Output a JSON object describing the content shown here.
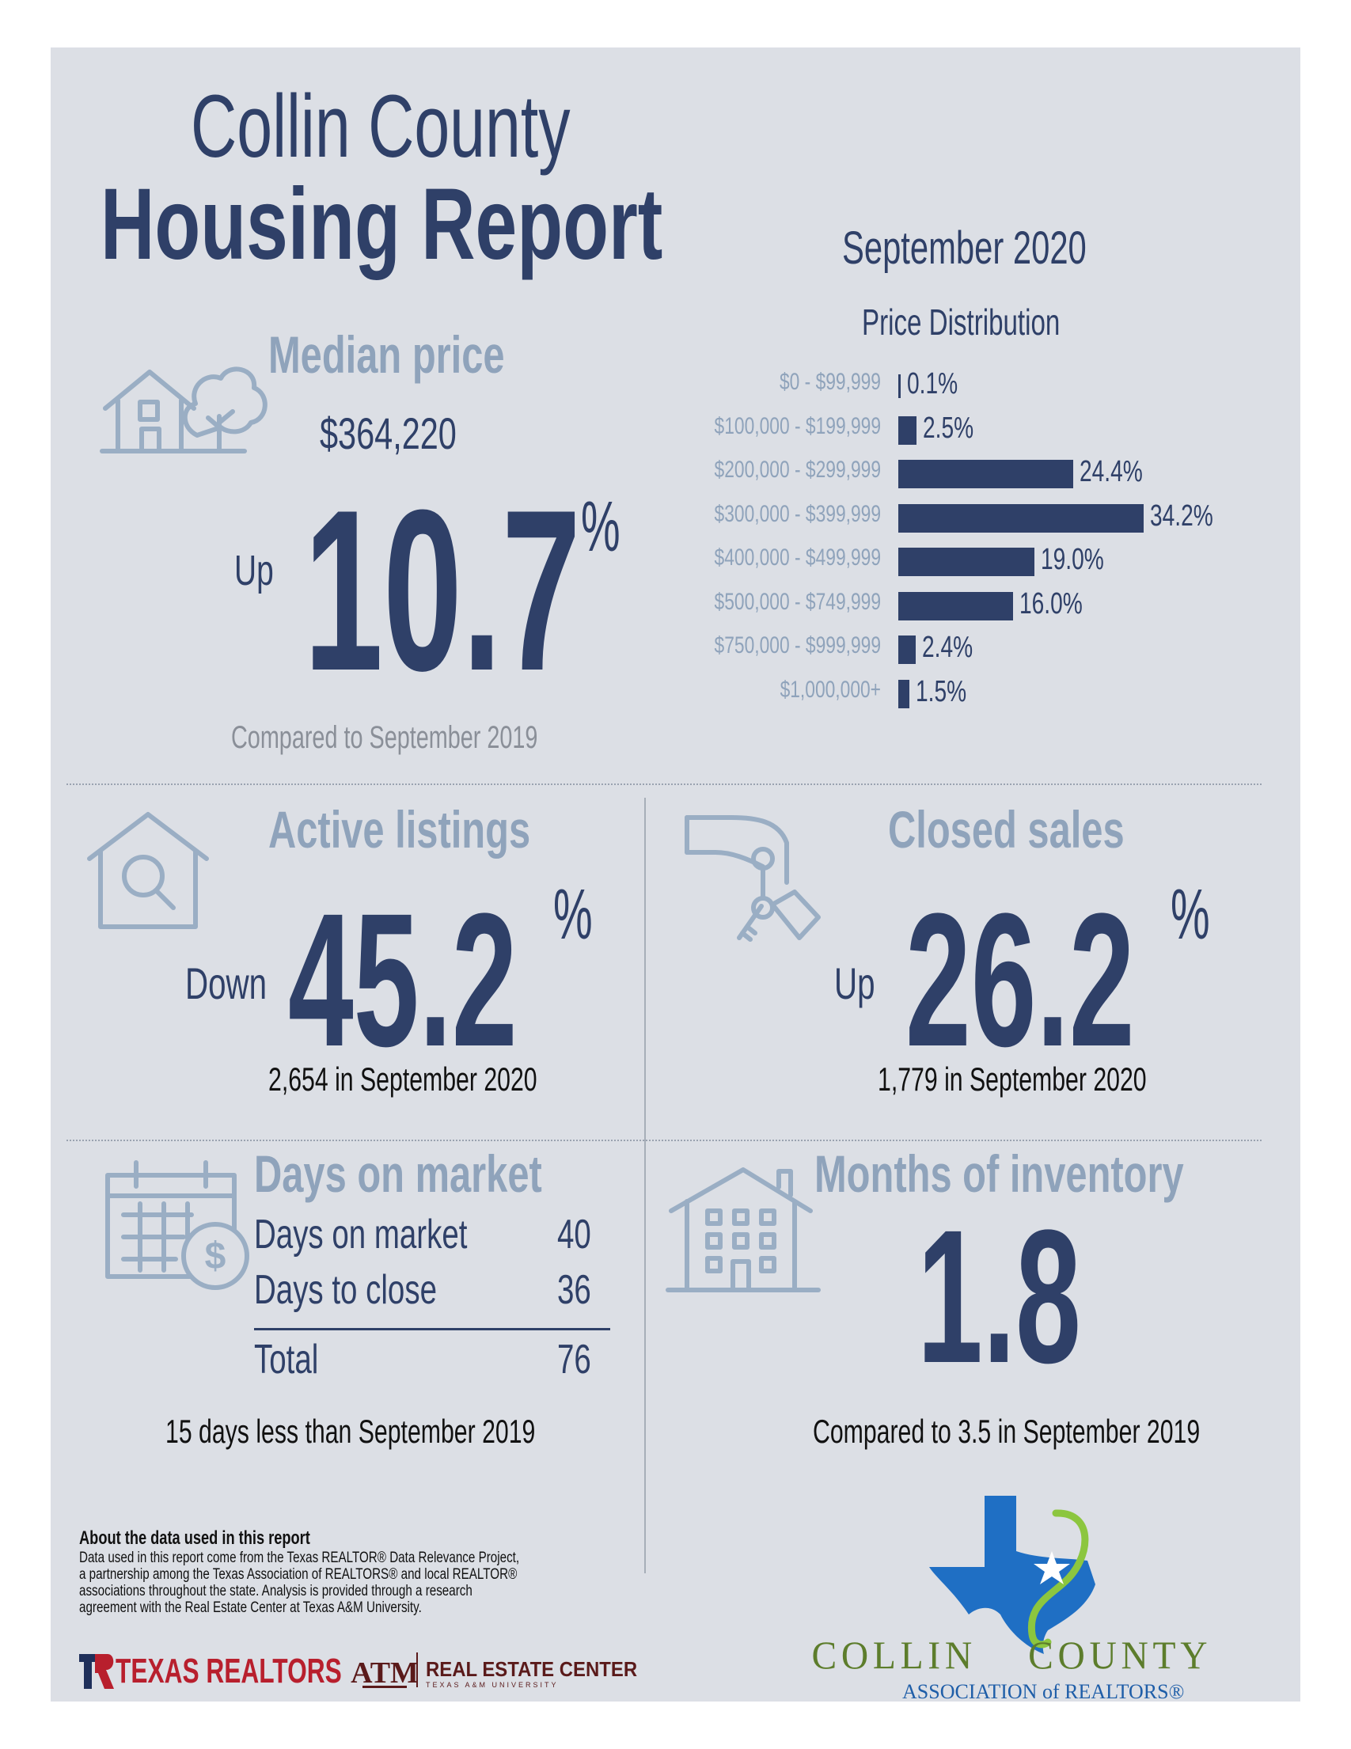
{
  "header": {
    "title_line1": "Collin County",
    "title_line2": "Housing Report",
    "period": "September 2020"
  },
  "median_price": {
    "heading": "Median price",
    "value": "$364,220",
    "direction": "Up",
    "change": "10.7",
    "percent_sign": "%",
    "comparison": "Compared to September 2019",
    "icon": "house-tree-icon"
  },
  "price_distribution": {
    "heading": "Price Distribution",
    "chart_data": {
      "type": "bar",
      "orientation": "horizontal",
      "title": "Price Distribution",
      "categories": [
        "$0 - $99,999",
        "$100,000 - $199,999",
        "$200,000 - $299,999",
        "$300,000 - $399,999",
        "$400,000 - $499,999",
        "$500,000 - $749,999",
        "$750,000 - $999,999",
        "$1,000,000+"
      ],
      "values": [
        0.1,
        2.5,
        24.4,
        34.2,
        19.0,
        16.0,
        2.4,
        1.5
      ],
      "labels": [
        "0.1%",
        "2.5%",
        "24.4%",
        "34.2%",
        "19.0%",
        "16.0%",
        "2.4%",
        "1.5%"
      ],
      "xlim": [
        0,
        34.2
      ],
      "grid": false
    }
  },
  "active_listings": {
    "heading": "Active listings",
    "direction": "Down",
    "change": "45.2",
    "percent_sign": "%",
    "subtext": "2,654 in September 2020",
    "icon": "house-magnifier-icon"
  },
  "closed_sales": {
    "heading": "Closed sales",
    "direction": "Up",
    "change": "26.2",
    "percent_sign": "%",
    "subtext": "1,779 in September 2020",
    "icon": "hand-keys-icon"
  },
  "days_on_market": {
    "heading": "Days on market",
    "rows": [
      {
        "label": "Days on market",
        "value": "40"
      },
      {
        "label": "Days to close",
        "value": "36"
      }
    ],
    "total_label": "Total",
    "total_value": "76",
    "subtext": "15 days less than September 2019",
    "icon": "calendar-dollar-icon"
  },
  "months_inventory": {
    "heading": "Months of inventory",
    "value": "1.8",
    "subtext": "Compared to 3.5 in September 2019",
    "icon": "apartment-house-icon"
  },
  "footer": {
    "about_heading": "About the data used in this report",
    "about_body": "Data used in this report come from the Texas REALTOR® Data Relevance Project, a partnership among the Texas Association of REALTORS® and local REALTOR® associations throughout the state. Analysis is provided through a research agreement with the Real Estate Center at Texas A&M University.",
    "texas_realtors": "TEXAS REALTORS",
    "real_estate_center": "REAL ESTATE CENTER",
    "real_estate_center_sub": "TEXAS A&M UNIVERSITY",
    "logo_collin": "COLLIN",
    "logo_county": "COUNTY",
    "logo_assoc": "ASSOCIATION of REALTORS®",
    "colors": {
      "navy": "#2f4068",
      "light_blue": "#8fa3bb",
      "texas_red": "#b81f2d",
      "collin_green": "#5d7d2c",
      "texas_blue": "#1f6fc4"
    }
  }
}
